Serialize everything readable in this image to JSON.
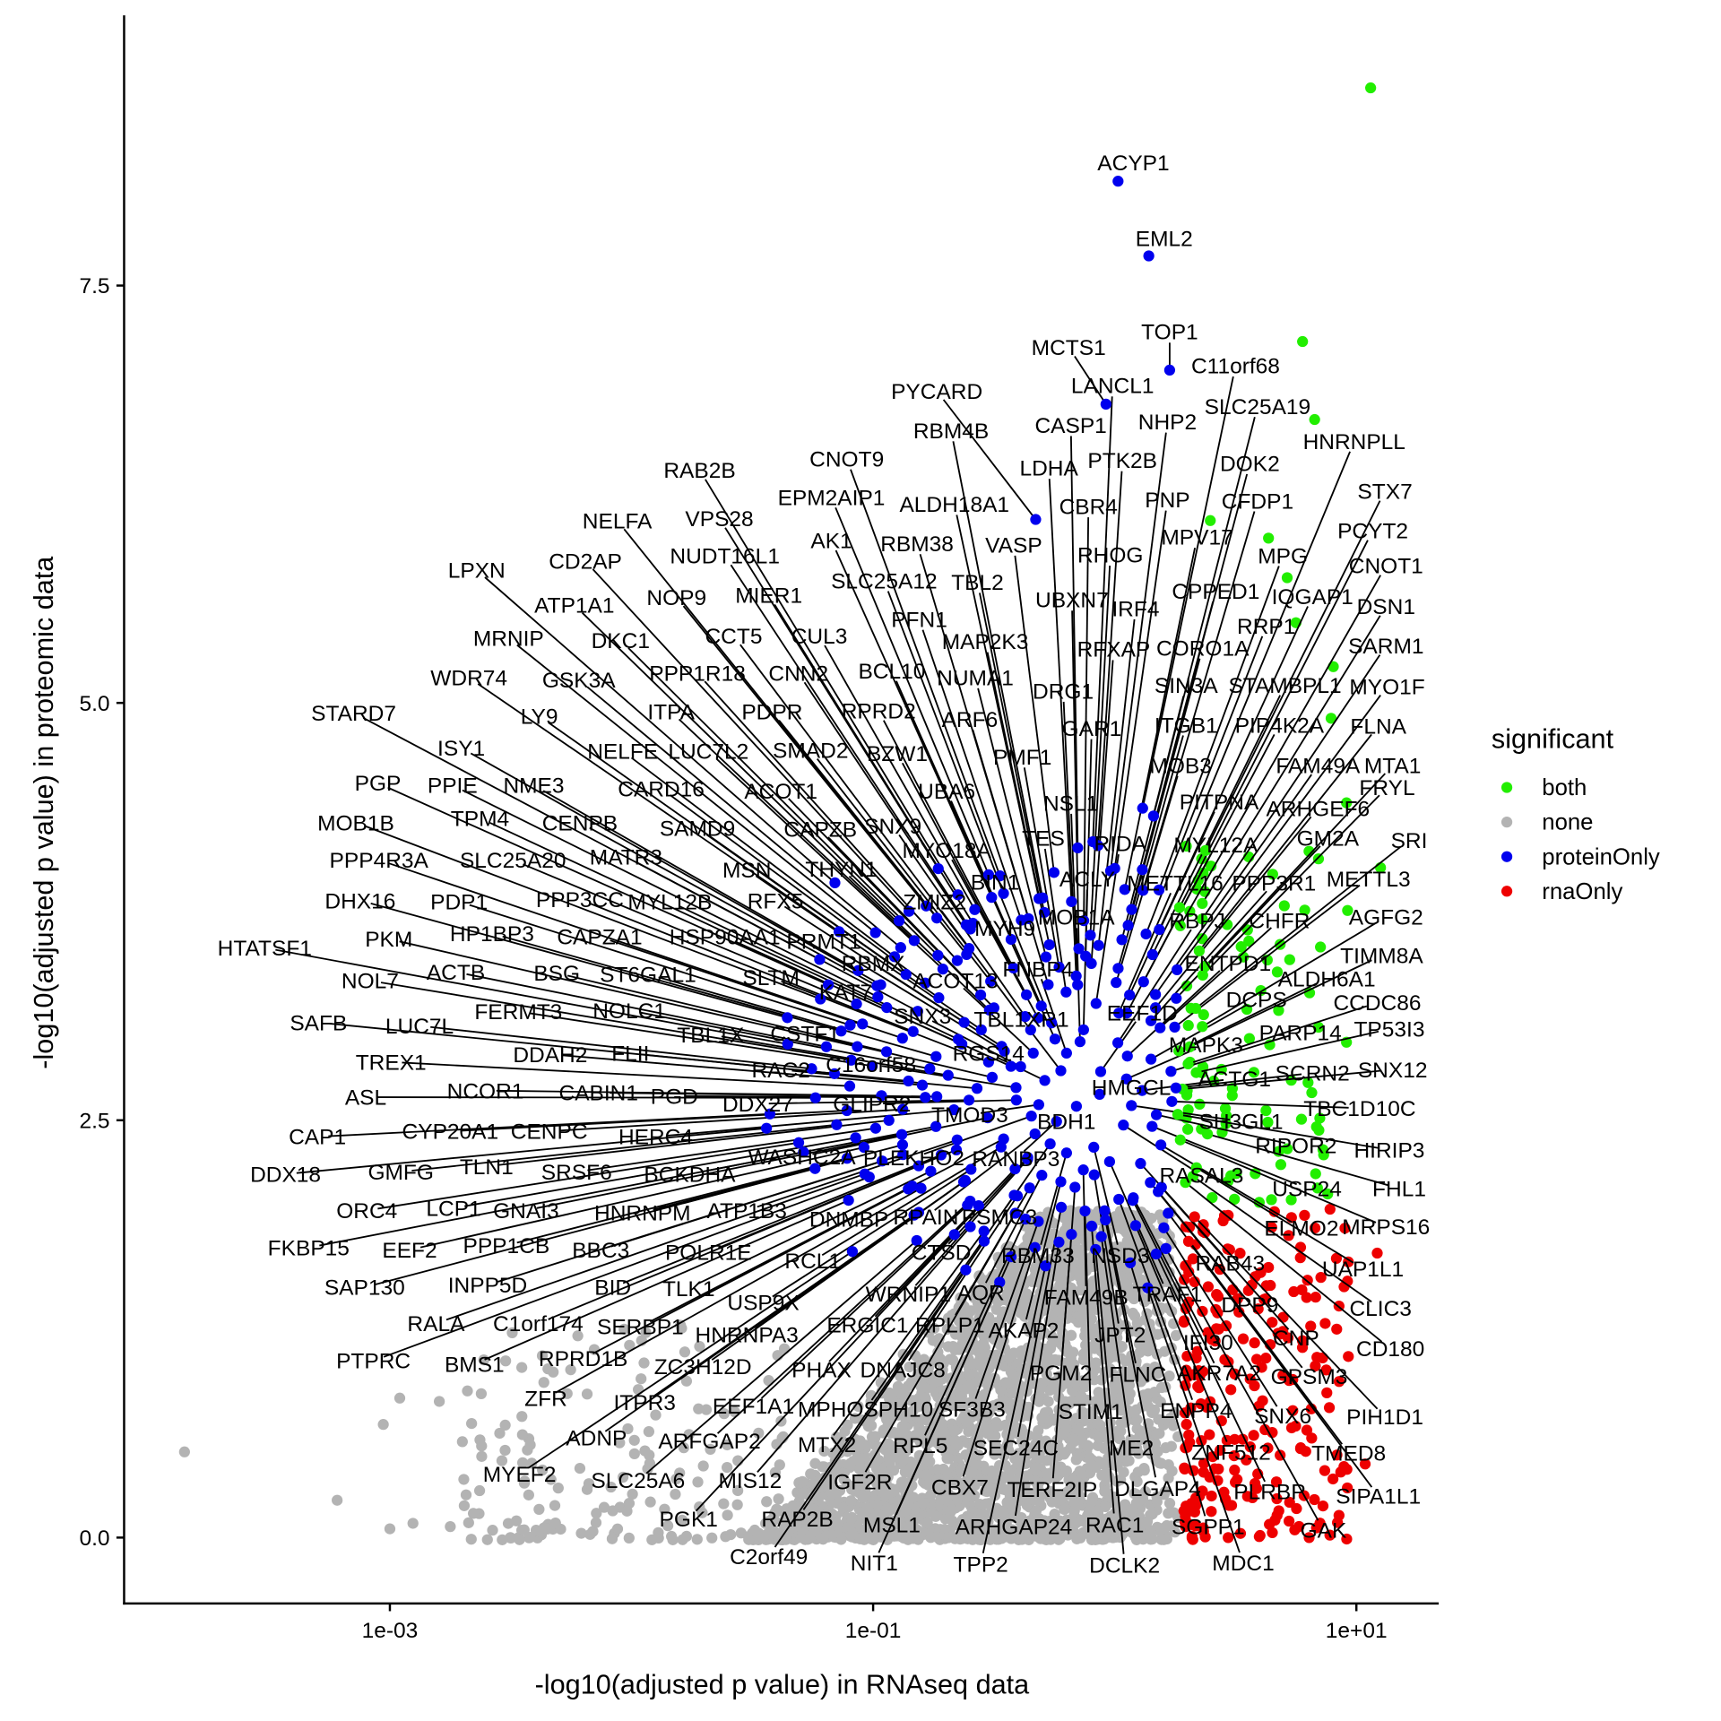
{
  "chart_data": {
    "type": "scatter",
    "title": "",
    "xlabel": "-log10(adjusted p value) in RNAseq data",
    "ylabel": "-log10(adjusted p value) in proteomic data",
    "x_scale": "log10",
    "x_ticks": [
      "1e-03",
      "1e-01",
      "1e+01"
    ],
    "x_tick_values": [
      0.001,
      0.1,
      10
    ],
    "y_ticks": [
      "0.0",
      "2.5",
      "5.0",
      "7.5"
    ],
    "y_tick_values": [
      0,
      2.5,
      5,
      7.5
    ],
    "ylim": [
      -0.4,
      9.1
    ],
    "xlim_log10": [
      -4.1,
      1.35
    ],
    "grid": false,
    "legend": {
      "title": "significant",
      "placement": "right",
      "items": [
        {
          "label": "both",
          "color": "#22EE00"
        },
        {
          "label": "none",
          "color": "#B3B3B3"
        },
        {
          "label": "proteinOnly",
          "color": "#0000EE"
        },
        {
          "label": "rnaOnly",
          "color": "#EE0000"
        }
      ]
    },
    "labeled_genes": [
      "ACYP1",
      "EML2",
      "TOP1",
      "MCTS1",
      "C11orf68",
      "LANCL1",
      "PYCARD",
      "SLC25A19",
      "CASP1",
      "NHP2",
      "RBM4B",
      "HNRNPLL",
      "CNOT9",
      "LDHA",
      "PTK2B",
      "DOK2",
      "RAB2B",
      "STX7",
      "EPM2AIP1",
      "ALDH18A1",
      "CBR4",
      "PNP",
      "CFDP1",
      "NELFA",
      "VPS28",
      "AK1",
      "RBM38",
      "VASP",
      "MPV17",
      "PCYT2",
      "RHOG",
      "MPG",
      "CD2AP",
      "NUDT16L1",
      "SLC25A12",
      "TBL2",
      "CNOT1",
      "LPXN",
      "CPPED1",
      "IQGAP1",
      "UBXN7",
      "NOP9",
      "MIER1",
      "IRF4",
      "DSN1",
      "ATP1A1",
      "CCT5",
      "CUL3",
      "PFN1",
      "MAP2K3",
      "RFXAP",
      "CORO1A",
      "RRP1",
      "DKC1",
      "SARM1",
      "MRNIP",
      "PPP1R18",
      "CNN2",
      "BCL10",
      "NUMA1",
      "DRG1",
      "SIN3A",
      "STAMBPL1",
      "MYO1F",
      "WDR74",
      "GSK3A",
      "LY9",
      "ITPA",
      "PDPR",
      "RPRD2",
      "ARF6",
      "GAR1",
      "ITGB1",
      "PIP4K2A",
      "FLNA",
      "STARD7",
      "ISY1",
      "NELFE",
      "LUC7L2",
      "SMAD2",
      "BZW1",
      "PMF1",
      "MOB3",
      "FAM49A",
      "MTA1",
      "PGP",
      "PPIE",
      "NME3",
      "CARD16",
      "ACOT1",
      "UBA6",
      "NSL1",
      "PITPNA",
      "ARHGEF6",
      "FRYL",
      "MOB1B",
      "TPM4",
      "CENPB",
      "SAMD9",
      "CAPZB",
      "SNX9",
      "GM2A",
      "SRI",
      "PPP4R3A",
      "SLC25A20",
      "MATR3",
      "MYO18A",
      "TES",
      "RIDA",
      "MYL12A",
      "MSN",
      "THYN1",
      "BIN1",
      "ACLY",
      "METTL16",
      "PPP3R1",
      "METTL3",
      "DHX16",
      "PDP1",
      "PPP3CC",
      "MYL12B",
      "RFX5",
      "ZMIZ2",
      "MOB1A",
      "AGFG2",
      "HTATSF1",
      "PKM",
      "HP1BP3",
      "CAPZA1",
      "HSP90AA1",
      "PRMT1",
      "RBMX",
      "MYH9",
      "RBPJ",
      "CHFR",
      "TIMM8A",
      "NOL7",
      "ACTB",
      "BSG",
      "ST6GAL1",
      "SLTM",
      "ACOT13",
      "FNBP4",
      "ENTPD1",
      "ALDH6A1",
      "CCDC86",
      "SAFB",
      "LUC7L",
      "FERMT3",
      "NOLC1",
      "KAT7",
      "SNX3",
      "TBL1XR1",
      "EEF1D",
      "DCPS",
      "TBL1X",
      "CSTF1",
      "PARP14",
      "TP53I3",
      "TREX1",
      "DDAH2",
      "FLII",
      "RAC2",
      "C16orf58",
      "RGS14",
      "MAPK3",
      "SNX12",
      "SCRN2",
      "ASL",
      "NCOR1",
      "CABIN1",
      "PGD",
      "DDX27",
      "GLIPR2",
      "ACTG1",
      "HMGCL",
      "TBC1D10C",
      "CAP1",
      "CYP20A1",
      "CENPC",
      "HERC4",
      "TMOD3",
      "BDH1",
      "SH3GL1",
      "DDX18",
      "GMFG",
      "TLN1",
      "SRSF6",
      "BCKDHA",
      "WASHC2A",
      "PLEKHO2",
      "RANBP3",
      "RIPOR2",
      "HIRIP3",
      "ORC4",
      "LCP1",
      "GNAI3",
      "HNRNPM",
      "ATP1B3",
      "DNMBP",
      "RPAIN",
      "PSMC3",
      "RASAL3",
      "USP24",
      "FHL1",
      "FKBP15",
      "EEF2",
      "PPP1CB",
      "BBC3",
      "POLR1E",
      "RCL1",
      "CTSD",
      "RBM33",
      "NSD3",
      "RAB43",
      "ELMO2",
      "MRPS16",
      "UAP1L1",
      "SAP130",
      "INPP5D",
      "BID",
      "TLK1",
      "USP9X",
      "WRNIP1",
      "AQR",
      "FAM49B",
      "TRAF1",
      "DPP9",
      "CLIC3",
      "RALA",
      "C1orf174",
      "SERBP1",
      "HNRNPA3",
      "ERGIC1",
      "RPLP1",
      "AKAP2",
      "JPT2",
      "IFI30",
      "CNP",
      "CD180",
      "PTPRC",
      "BMS1",
      "RPRD1B",
      "ZC3H12D",
      "PHAX",
      "DNAJC8",
      "PGM2",
      "FLNC",
      "AKR7A2",
      "GPSM3",
      "ZFR",
      "ITPR3",
      "EEF1A1",
      "MPHOSPH10",
      "SF3B3",
      "STIM1",
      "ENPP4",
      "SNX6",
      "PIH1D1",
      "ADNP",
      "ARFGAP2",
      "MTX2",
      "RPL5",
      "SEC24C",
      "ME2",
      "ZNF512",
      "TMED8",
      "MYEF2",
      "SLC25A6",
      "MIS12",
      "IGF2R",
      "CBX7",
      "TERF2IP",
      "DLGAP4",
      "PLRBP",
      "SIPA1L1",
      "PGK1",
      "RAP2B",
      "MSL1",
      "ARHGAP24",
      "RAC1",
      "SGPP1",
      "GAK",
      "C2orf49",
      "NIT1",
      "TPP2",
      "DCLK2",
      "MDC1"
    ]
  }
}
